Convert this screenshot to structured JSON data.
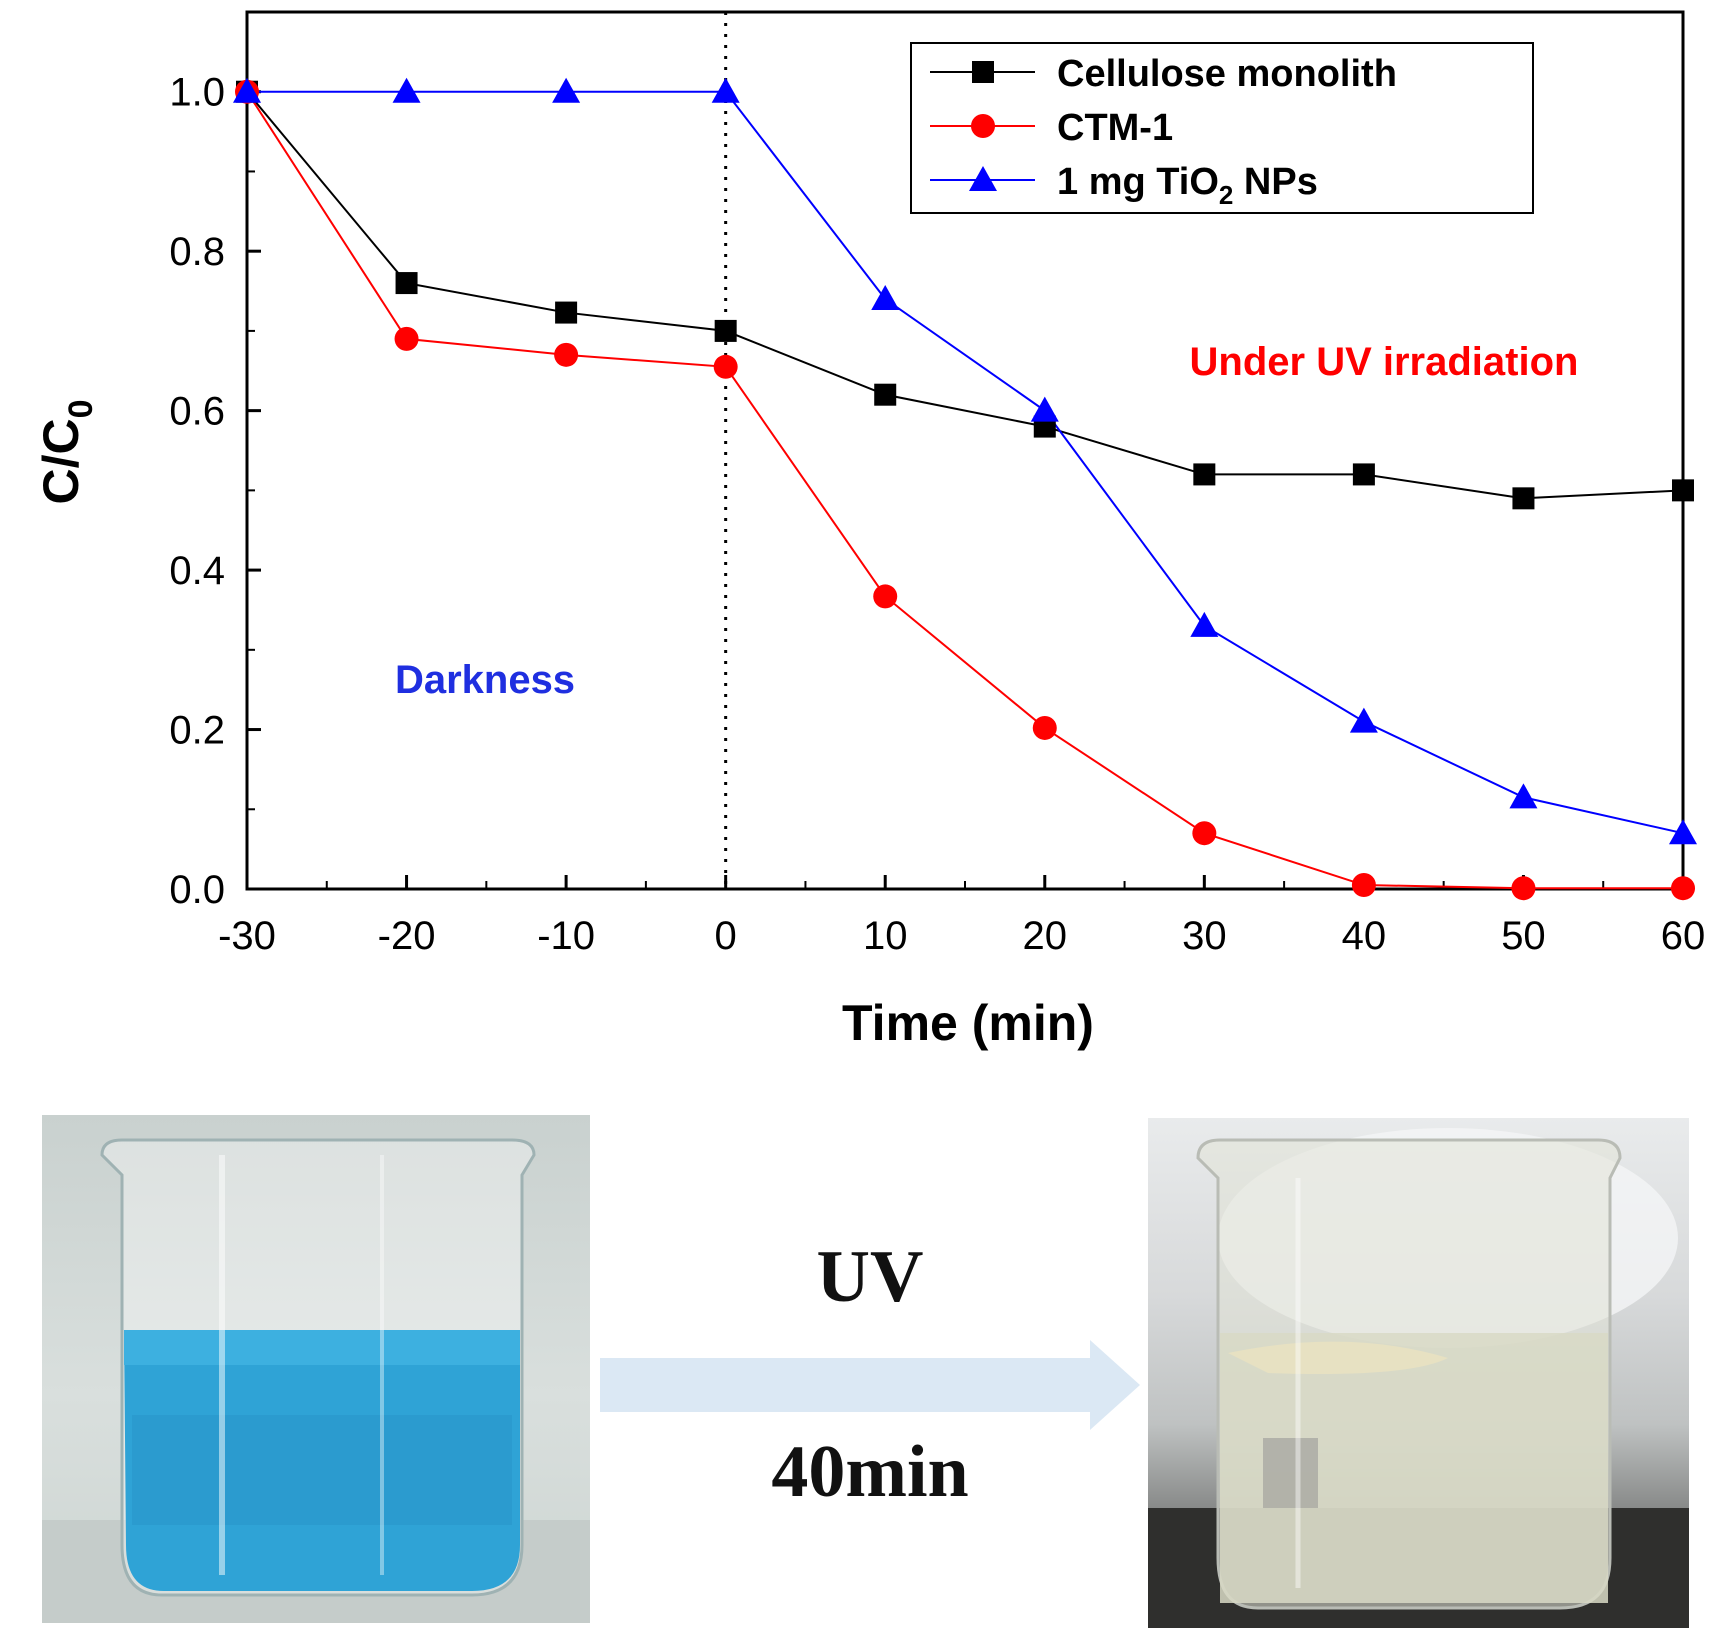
{
  "chart_data": {
    "type": "line",
    "xlabel": "Time (min)",
    "ylabel_main": "C/C",
    "ylabel_sub": "0",
    "xlim": [
      -30,
      60
    ],
    "ylim": [
      0,
      1.1
    ],
    "xticks": [
      -30,
      -20,
      -10,
      0,
      10,
      20,
      30,
      40,
      50,
      60
    ],
    "xtick_labels": [
      "-30",
      "-20",
      "-10",
      "0",
      "10",
      "20",
      "30",
      "40",
      "50",
      "60"
    ],
    "yticks": [
      0,
      0.2,
      0.4,
      0.6,
      0.8,
      1.0
    ],
    "ytick_labels": [
      "0.0",
      "0.2",
      "0.4",
      "0.6",
      "0.8",
      "1.0"
    ],
    "divider_x": 0,
    "legend_position": "top-right",
    "x": [
      -30,
      -20,
      -10,
      0,
      10,
      20,
      30,
      40,
      50,
      60
    ],
    "series": [
      {
        "name": "Cellulose monolith",
        "marker": "square",
        "color": "#000000",
        "values": [
          1.0,
          0.76,
          0.723,
          0.7,
          0.62,
          0.58,
          0.52,
          0.52,
          0.49,
          0.5
        ]
      },
      {
        "name": "CTM-1",
        "marker": "circle",
        "color": "#ff0000",
        "values": [
          1.0,
          0.69,
          0.67,
          0.655,
          0.367,
          0.202,
          0.07,
          0.005,
          0.001,
          0.001
        ]
      },
      {
        "name_parts": [
          "1 mg TiO",
          "2",
          " NPs"
        ],
        "marker": "triangle",
        "color": "#0000ff",
        "values": [
          1.0,
          1.0,
          1.0,
          1.0,
          0.74,
          0.6,
          0.33,
          0.21,
          0.115,
          0.07
        ]
      }
    ],
    "annotations": {
      "uv": {
        "text": "Under UV irradiation",
        "color": "#ff0000"
      },
      "dark": {
        "text": "Darkness",
        "color": "#1f2fe0"
      }
    }
  },
  "figure_bottom": {
    "uv_label": "UV",
    "time_label": "40min"
  }
}
